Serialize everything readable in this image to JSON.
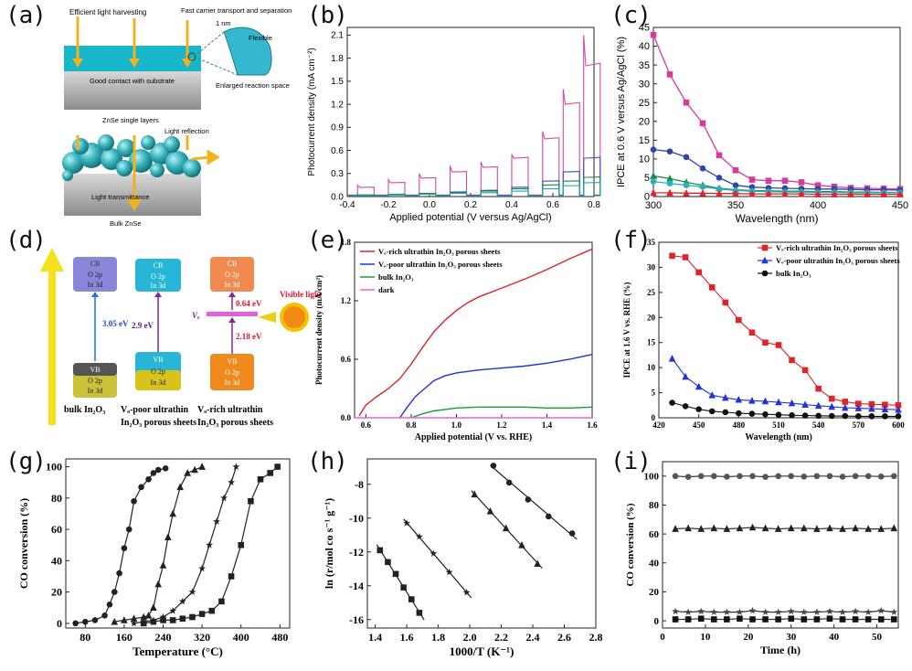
{
  "labels": {
    "a": "(a)",
    "b": "(b)",
    "c": "(c)",
    "d": "(d)",
    "e": "(e)",
    "f": "(f)",
    "g": "(g)",
    "h": "(h)",
    "i": "(i)"
  },
  "panel_a": {
    "top_texts": [
      "Efficient light harvesting",
      "Fast carrier transport and separation",
      "Flexible",
      "1 nm",
      "Good contact with substrate",
      "Enlarged reaction space",
      "ZnSe single layers"
    ],
    "bottom_texts": [
      "Light reflection",
      "Light transmittance",
      "Bulk ZnSe"
    ]
  },
  "panel_d": {
    "bulk": {
      "cb": [
        "CB",
        "O 2p",
        "In 3d"
      ],
      "vb": [
        "VB",
        "O 2p",
        "In 3d"
      ],
      "gap": "3.05 eV",
      "caption": [
        "bulk In₂O₃"
      ]
    },
    "poor": {
      "cb": [
        "CB",
        "O 2p",
        "In 3d"
      ],
      "vb": [
        "VB",
        "O 2p",
        "In 3d"
      ],
      "gap": "2.9 eV",
      "caption": [
        "Vₒ-poor ultrathin",
        "In₂O₃ porous sheets"
      ]
    },
    "rich": {
      "cb": [
        "CB",
        "O 2p",
        "In 3d"
      ],
      "vb": [
        "VB",
        "O 2p",
        "In 3d"
      ],
      "gap_top": "0.64 eV",
      "gap_bottom": "2.18 eV",
      "vo": "Vₒ",
      "caption": [
        "Vₒ-rich ultrathin",
        "In₂O₃ porous sheets"
      ]
    },
    "visible_light": "Visible light",
    "colors": {
      "arrow": "#f5e21b",
      "cb_bulk": "#8a86d8",
      "vb_bulk": "#c9c23a",
      "cb_poor": "#27b6d8",
      "vb_poor": "#d8c31b",
      "cb_rich": "#f08a50",
      "vb_rich": "#f08a1e",
      "gap_bulk": "#1e6fd8",
      "gap_rich": "#e8132a"
    }
  },
  "chart_data": [
    {
      "id": "b",
      "type": "line",
      "title": "",
      "xlabel": "Applied potential (V versus Ag/AgCl)",
      "ylabel": "Photocurrent density (mA cm⁻²)",
      "xlim": [
        -0.4,
        0.8
      ],
      "ylim": [
        0,
        2.2
      ],
      "xticks": [
        "-0.4",
        "-0.2",
        "0.0",
        "0.2",
        "0.4",
        "0.6",
        "0.8"
      ],
      "yticks": [
        "0.0",
        "0.3",
        "0.6",
        "0.9",
        "1.2",
        "1.5",
        "1.8",
        "2.1"
      ],
      "series": [
        {
          "name": "pink",
          "color": "#d44aa0",
          "pulse_peaks": [
            0.15,
            0.22,
            0.3,
            0.4,
            0.45,
            0.55,
            0.85,
            1.4,
            2.1
          ],
          "pulse_plateau": [
            0.12,
            0.18,
            0.24,
            0.32,
            0.38,
            0.5,
            0.75,
            1.2,
            1.7
          ]
        },
        {
          "name": "blue",
          "color": "#3a4bd0",
          "plateau": [
            0.02,
            0.03,
            0.04,
            0.06,
            0.08,
            0.12,
            0.2,
            0.32,
            0.5
          ]
        },
        {
          "name": "green",
          "color": "#1b8a3a",
          "plateau": [
            0.02,
            0.03,
            0.04,
            0.05,
            0.07,
            0.1,
            0.15,
            0.2,
            0.25
          ]
        },
        {
          "name": "teal",
          "color": "#2aa7b3",
          "plateau": [
            0.01,
            0.02,
            0.03,
            0.04,
            0.05,
            0.07,
            0.1,
            0.14,
            0.18
          ]
        }
      ]
    },
    {
      "id": "c",
      "type": "line",
      "xlabel": "Wavelength (nm)",
      "ylabel": "IPCE at 0.6  V versus Ag/AgCl (%)",
      "xlim": [
        300,
        450
      ],
      "ylim": [
        0,
        45
      ],
      "xticks": [
        "300",
        "350",
        "400",
        "450"
      ],
      "yticks": [
        "0",
        "5",
        "10",
        "15",
        "20",
        "25",
        "30",
        "35",
        "40",
        "45"
      ],
      "x": [
        300,
        310,
        320,
        330,
        340,
        350,
        360,
        370,
        380,
        390,
        400,
        410,
        420,
        430,
        440,
        450
      ],
      "series": [
        {
          "name": "magenta",
          "color": "#d83a9a",
          "values": [
            43,
            32.5,
            25,
            19.5,
            11,
            7,
            4.5,
            4.2,
            4.2,
            3.8,
            3,
            2.6,
            2.3,
            2.2,
            2.1,
            2
          ]
        },
        {
          "name": "navy",
          "color": "#2f45a8",
          "values": [
            12.5,
            12,
            10.5,
            7.5,
            5,
            3,
            2.5,
            2.3,
            2.2,
            2.1,
            2,
            2,
            1.9,
            1.8,
            1.8,
            1.7
          ]
        },
        {
          "name": "green",
          "color": "#1e8a4a",
          "values": [
            5.5,
            4.8,
            3.8,
            3,
            2.2,
            1.8,
            1.6,
            1.5,
            1.4,
            1.4,
            1.3,
            1.3,
            1.2,
            1.2,
            1.1,
            1.1
          ]
        },
        {
          "name": "cyan",
          "color": "#2ab0b8",
          "values": [
            4,
            3.5,
            3,
            2.6,
            2,
            1.6,
            1.4,
            1.3,
            1.2,
            1.2,
            1.1,
            1.1,
            1,
            1,
            1,
            1
          ]
        },
        {
          "name": "red",
          "color": "#e0232a",
          "values": [
            1,
            1,
            0.9,
            0.9,
            0.8,
            0.8,
            0.7,
            0.7,
            0.7,
            0.7,
            0.6,
            0.6,
            0.6,
            0.6,
            0.6,
            0.6
          ]
        }
      ]
    },
    {
      "id": "e",
      "type": "line",
      "xlabel": "Applied potential (V vs. RHE)",
      "ylabel": "Photocurrent density (mA/cm²)",
      "xlim": [
        0.55,
        1.6
      ],
      "ylim": [
        0,
        1.8
      ],
      "xticks": [
        "0.6",
        "0.8",
        "1.0",
        "1.2",
        "1.4",
        "1.6"
      ],
      "yticks": [
        "0.0",
        "0.6",
        "1.2",
        "1.8"
      ],
      "legend": [
        "Vₒ-rich ultrathin In₂O₃ porous sheets",
        "Vₒ-poor ultrathin In₂O₃ porous sheets",
        "bulk In₂O₃",
        "dark"
      ],
      "series": [
        {
          "name": "rich",
          "color": "#e0232a",
          "x": [
            0.57,
            0.6,
            0.65,
            0.7,
            0.75,
            0.8,
            0.85,
            0.9,
            0.95,
            1.0,
            1.05,
            1.1,
            1.2,
            1.3,
            1.4,
            1.5,
            1.6
          ],
          "values": [
            0.02,
            0.13,
            0.22,
            0.3,
            0.4,
            0.55,
            0.72,
            0.88,
            1.0,
            1.1,
            1.18,
            1.24,
            1.33,
            1.42,
            1.52,
            1.63,
            1.73
          ]
        },
        {
          "name": "poor",
          "color": "#2233d8",
          "x": [
            0.75,
            0.78,
            0.82,
            0.86,
            0.9,
            0.95,
            1.0,
            1.1,
            1.2,
            1.3,
            1.4,
            1.5,
            1.6
          ],
          "values": [
            0,
            0.1,
            0.22,
            0.3,
            0.38,
            0.43,
            0.46,
            0.49,
            0.51,
            0.53,
            0.56,
            0.6,
            0.65
          ]
        },
        {
          "name": "bulk",
          "color": "#1e9a3a",
          "x": [
            0.8,
            0.85,
            0.9,
            1.0,
            1.1,
            1.2,
            1.3,
            1.4,
            1.5,
            1.6
          ],
          "values": [
            0,
            0.04,
            0.07,
            0.1,
            0.11,
            0.11,
            0.11,
            0.1,
            0.1,
            0.11
          ]
        },
        {
          "name": "dark",
          "color": "#e06ad0",
          "x": [
            0.55,
            1.6
          ],
          "values": [
            0,
            0
          ]
        }
      ]
    },
    {
      "id": "f",
      "type": "line",
      "xlabel": "Wavelength (nm)",
      "ylabel": "IPCE at 1.6 V vs. RHE (%)",
      "xlim": [
        420,
        600
      ],
      "ylim": [
        0,
        35
      ],
      "xticks": [
        "420",
        "450",
        "480",
        "510",
        "540",
        "570",
        "600"
      ],
      "yticks": [
        "0",
        "5",
        "10",
        "15",
        "20",
        "25",
        "30",
        "35"
      ],
      "legend": [
        "Vₒ-rich ultrathin In₂O₃ porous sheets",
        "Vₒ-poor ultrathin In₂O₃ porous sheets",
        "bulk In₂O₃"
      ],
      "x": [
        430,
        440,
        450,
        460,
        470,
        480,
        490,
        500,
        510,
        520,
        530,
        540,
        550,
        560,
        570,
        580,
        590,
        600
      ],
      "series": [
        {
          "name": "rich",
          "color": "#e0232a",
          "marker": "square",
          "values": [
            32.3,
            32,
            29,
            26,
            23,
            19.5,
            17,
            15,
            14.5,
            11.5,
            9.5,
            5.8,
            3.8,
            3.2,
            2.8,
            2.7,
            2.6,
            2.5
          ]
        },
        {
          "name": "poor",
          "color": "#2233d8",
          "marker": "triangle",
          "values": [
            11.8,
            8.2,
            6.2,
            4.5,
            4,
            3.6,
            3.4,
            3.3,
            3.1,
            2.9,
            2.6,
            2.4,
            2.2,
            2,
            1.9,
            1.8,
            1.7,
            1.6
          ]
        },
        {
          "name": "bulk",
          "color": "#111111",
          "marker": "circle",
          "values": [
            3,
            2.3,
            1.7,
            1.3,
            1.1,
            0.9,
            0.8,
            0.7,
            0.6,
            0.5,
            0.45,
            0.4,
            0.35,
            0.35,
            0.3,
            0.3,
            0.3,
            0.3
          ]
        }
      ]
    },
    {
      "id": "g",
      "type": "line",
      "xlabel": "Temperature (°C)",
      "ylabel": "CO conversion (%)",
      "xlim": [
        40,
        500
      ],
      "ylim": [
        -3,
        105
      ],
      "xticks": [
        "80",
        "160",
        "240",
        "320",
        "400",
        "480"
      ],
      "yticks": [
        "0",
        "20",
        "40",
        "60",
        "80",
        "100"
      ],
      "series": [
        {
          "name": "circle",
          "marker": "circle",
          "x": [
            60,
            80,
            100,
            120,
            130,
            140,
            150,
            160,
            170,
            180,
            195,
            210,
            220,
            230,
            245
          ],
          "values": [
            0,
            1,
            2,
            5,
            12,
            20,
            32,
            48,
            60,
            78,
            87,
            92,
            96,
            98,
            99
          ]
        },
        {
          "name": "triangle",
          "marker": "triangle",
          "x": [
            140,
            160,
            180,
            200,
            210,
            220,
            230,
            240,
            250,
            260,
            275,
            290,
            305,
            320
          ],
          "values": [
            1,
            2,
            3,
            4,
            5,
            10,
            25,
            37,
            55,
            70,
            87,
            96,
            98,
            100
          ]
        },
        {
          "name": "star",
          "marker": "star",
          "x": [
            180,
            200,
            220,
            240,
            260,
            280,
            300,
            320,
            335,
            350,
            365,
            380,
            390
          ],
          "values": [
            0,
            1,
            2,
            4,
            8,
            14,
            20,
            35,
            50,
            65,
            80,
            90,
            100
          ]
        },
        {
          "name": "square",
          "marker": "square",
          "x": [
            200,
            220,
            240,
            260,
            280,
            300,
            320,
            340,
            360,
            380,
            400,
            420,
            440,
            460,
            475
          ],
          "values": [
            0,
            1,
            2,
            2,
            3,
            4,
            6,
            8,
            14,
            30,
            50,
            78,
            92,
            96,
            100
          ]
        }
      ]
    },
    {
      "id": "h",
      "type": "scatter",
      "xlabel": "1000/T (K⁻¹)",
      "ylabel": "ln (r/mol co s⁻¹ g⁻¹)",
      "xlim": [
        1.35,
        2.8
      ],
      "ylim": [
        -16.5,
        -6.5
      ],
      "xticks": [
        "1.4",
        "1.6",
        "1.8",
        "2.0",
        "2.2",
        "2.4",
        "2.6",
        "2.8"
      ],
      "yticks": [
        "-8",
        "-10",
        "-12",
        "-14",
        "-16"
      ],
      "series": [
        {
          "name": "square",
          "marker": "square",
          "x": [
            1.43,
            1.48,
            1.53,
            1.58,
            1.63,
            1.68
          ],
          "values": [
            -11.9,
            -12.6,
            -13.3,
            -14.1,
            -14.8,
            -15.6
          ]
        },
        {
          "name": "star",
          "marker": "star",
          "x": [
            1.6,
            1.68,
            1.77,
            1.87,
            1.98
          ],
          "values": [
            -10.3,
            -11.1,
            -12.1,
            -13.2,
            -14.4
          ]
        },
        {
          "name": "triangle",
          "marker": "triangle",
          "x": [
            2.03,
            2.13,
            2.23,
            2.33,
            2.43
          ],
          "values": [
            -8.6,
            -9.6,
            -10.6,
            -11.6,
            -12.7
          ]
        },
        {
          "name": "circle",
          "marker": "circle",
          "x": [
            2.15,
            2.25,
            2.37,
            2.5,
            2.65
          ],
          "values": [
            -6.9,
            -7.9,
            -8.9,
            -9.9,
            -10.9
          ]
        }
      ]
    },
    {
      "id": "i",
      "type": "line",
      "xlabel": "Time (h)",
      "ylabel": "CO conversion (%)",
      "xlim": [
        0,
        55
      ],
      "ylim": [
        -5,
        110
      ],
      "xticks": [
        "0",
        "10",
        "20",
        "30",
        "40",
        "50"
      ],
      "yticks": [
        "0",
        "20",
        "40",
        "60",
        "80",
        "100"
      ],
      "x": [
        3,
        6,
        9,
        12,
        15,
        18,
        21,
        24,
        27,
        30,
        33,
        36,
        39,
        42,
        45,
        48,
        51,
        54
      ],
      "series": [
        {
          "name": "circle",
          "marker": "circle",
          "values": [
            100,
            99.5,
            100,
            100,
            99.6,
            100,
            100,
            99.5,
            100,
            100,
            99.7,
            100,
            100,
            99.6,
            100,
            100,
            99.7,
            100
          ]
        },
        {
          "name": "triangle",
          "marker": "triangle",
          "values": [
            63.5,
            64,
            63.5,
            64,
            63.5,
            64,
            64.5,
            64,
            63.5,
            64,
            64,
            63.5,
            64,
            63.5,
            64,
            63.5,
            63.5,
            64
          ]
        },
        {
          "name": "star",
          "marker": "star",
          "values": [
            6.5,
            6,
            6.5,
            6,
            6,
            6,
            7,
            6,
            6,
            6.5,
            6,
            6,
            6.5,
            6,
            6.5,
            6,
            7,
            6
          ]
        },
        {
          "name": "square",
          "marker": "square",
          "values": [
            1,
            1,
            1.5,
            1,
            1,
            1.5,
            1,
            1,
            1,
            1.5,
            1,
            1,
            1.5,
            1,
            1,
            1,
            1,
            1
          ]
        }
      ]
    }
  ]
}
